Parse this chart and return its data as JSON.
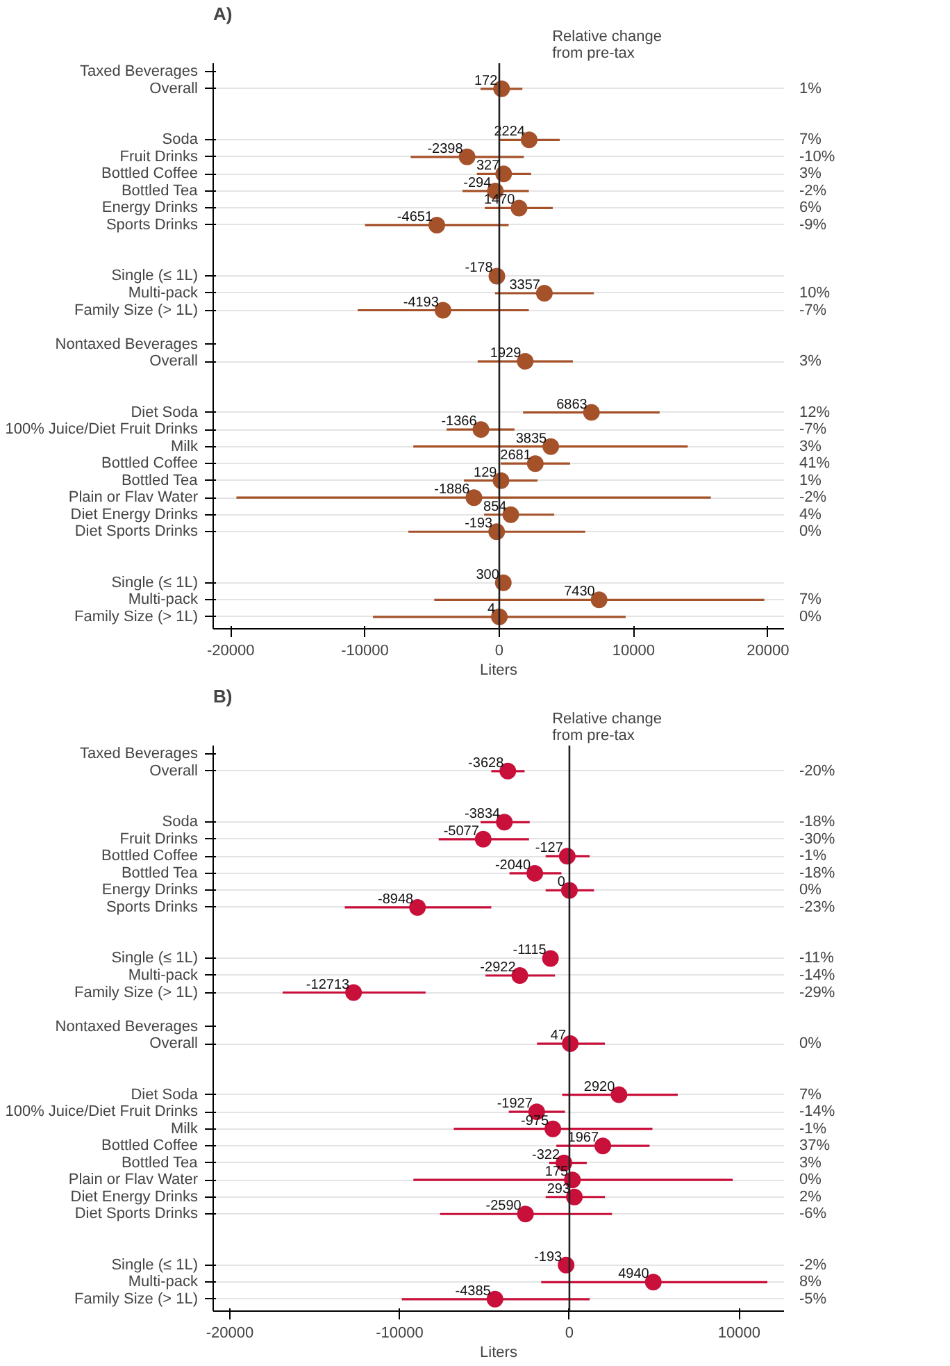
{
  "chart_data": [
    {
      "type": "scatter",
      "orientation": "horizontal",
      "title": "A)",
      "xlabel": "Liters",
      "y2label": "Relative change\nfrom pre-tax",
      "marker": "circle",
      "grid": "y",
      "data_labels": true,
      "color": "#a5522b",
      "xlim": [
        -21300,
        21200
      ],
      "xticks": [
        -20000,
        -10000,
        0,
        10000,
        20000
      ],
      "ref_lines": [
        {
          "axis": "x",
          "value": 0,
          "color": "#222222"
        }
      ],
      "categories": [
        "Taxed Beverages",
        "Overall",
        null,
        null,
        "Soda",
        "Fruit Drinks",
        "Bottled Coffee",
        "Bottled Tea",
        "Energy Drinks",
        "Sports Drinks",
        null,
        null,
        "Single (≤ 1L)",
        "Multi-pack",
        "Family Size (> 1L)",
        null,
        "Nontaxed Beverages",
        "Overall",
        null,
        null,
        "Diet Soda",
        "100% Juice/Diet Fruit Drinks",
        "Milk",
        "Bottled Coffee",
        "Bottled Tea",
        "Plain or Flav Water",
        "Diet Energy Drinks",
        "Diet Sports Drinks",
        null,
        null,
        "Single (≤ 1L)",
        "Multi-pack",
        "Family Size (> 1L)"
      ],
      "y2_categories": [
        null,
        "1%",
        null,
        null,
        "7%",
        "-10%",
        "3%",
        "-2%",
        "6%",
        "-9%",
        null,
        null,
        null,
        "10%",
        "-7%",
        null,
        null,
        "3%",
        null,
        null,
        "12%",
        "-7%",
        "3%",
        "41%",
        "1%",
        "-2%",
        "4%",
        "0%",
        null,
        null,
        null,
        "7%",
        "0%"
      ],
      "values": [
        null,
        172,
        null,
        null,
        2224,
        -2398,
        327,
        -294,
        1470,
        -4651,
        null,
        null,
        -178,
        3357,
        -4193,
        null,
        null,
        1929,
        null,
        null,
        6863,
        -1366,
        3835,
        2681,
        129,
        -1886,
        854,
        -193,
        null,
        null,
        300,
        7430,
        4
      ],
      "errors": [
        null,
        [
          -1400,
          1720
        ],
        null,
        null,
        [
          0,
          4500
        ],
        [
          -6600,
          1830
        ],
        [
          -1670,
          2370
        ],
        [
          -2740,
          2200
        ],
        [
          -1080,
          3980
        ],
        [
          -10000,
          700
        ],
        null,
        null,
        null,
        [
          -320,
          7040
        ],
        [
          -10540,
          2200
        ],
        null,
        null,
        [
          -1610,
          5480
        ],
        null,
        null,
        [
          1770,
          11940
        ],
        [
          -3920,
          1130
        ],
        [
          -6400,
          14030
        ],
        [
          100,
          5270
        ],
        [
          -2630,
          2850
        ],
        [
          -19570,
          15750
        ],
        [
          -1130,
          4090
        ],
        [
          -6770,
          6400
        ],
        null,
        null,
        null,
        [
          -4840,
          19730
        ],
        [
          -9410,
          9410
        ]
      ]
    },
    {
      "type": "scatter",
      "orientation": "horizontal",
      "title": "B)",
      "xlabel": "Liters",
      "y2label": "Relative change\nfrom pre-tax",
      "marker": "circle",
      "grid": "y",
      "data_labels": true,
      "color": "#c8103a",
      "xlim": [
        -20980,
        12640
      ],
      "xticks": [
        -20000,
        -10000,
        0,
        10000
      ],
      "ref_lines": [
        {
          "axis": "x",
          "value": 0,
          "color": "#222222"
        }
      ],
      "categories": [
        "Taxed Beverages",
        "Overall",
        null,
        null,
        "Soda",
        "Fruit Drinks",
        "Bottled Coffee",
        "Bottled Tea",
        "Energy Drinks",
        "Sports Drinks",
        null,
        null,
        "Single (≤ 1L)",
        "Multi-pack",
        "Family Size (> 1L)",
        null,
        "Nontaxed Beverages",
        "Overall",
        null,
        null,
        "Diet Soda",
        "100% Juice/Diet Fruit Drinks",
        "Milk",
        "Bottled Coffee",
        "Bottled Tea",
        "Plain or Flav Water",
        "Diet Energy Drinks",
        "Diet Sports Drinks",
        null,
        null,
        "Single (≤ 1L)",
        "Multi-pack",
        "Family Size (> 1L)"
      ],
      "y2_categories": [
        null,
        "-20%",
        null,
        null,
        "-18%",
        "-30%",
        "-1%",
        "-18%",
        "0%",
        "-23%",
        null,
        null,
        "-11%",
        "-14%",
        "-29%",
        null,
        null,
        "0%",
        null,
        null,
        "7%",
        "-14%",
        "-1%",
        "37%",
        "3%",
        "0%",
        "2%",
        "-6%",
        null,
        null,
        "-2%",
        "8%",
        "-5%"
      ],
      "values": [
        null,
        -3628,
        null,
        null,
        -3834,
        -5077,
        -127,
        -2040,
        0,
        -8948,
        null,
        null,
        -1115,
        -2922,
        -12713,
        null,
        null,
        47,
        null,
        null,
        2920,
        -1927,
        -975,
        1967,
        -322,
        175,
        293,
        -2590,
        null,
        null,
        -193,
        4940,
        -4385
      ],
      "errors": [
        null,
        [
          -4600,
          -2640
        ],
        null,
        null,
        [
          -5230,
          -2340
        ],
        [
          -7700,
          -2380
        ],
        [
          -1400,
          1190
        ],
        [
          -3530,
          -470
        ],
        [
          -1400,
          1450
        ],
        [
          -13230,
          -4600
        ],
        null,
        null,
        null,
        [
          -4940,
          -850
        ],
        [
          -16890,
          -8470
        ],
        null,
        null,
        [
          -1910,
          2090
        ],
        null,
        null,
        [
          -430,
          6380
        ],
        [
          -3570,
          -260
        ],
        [
          -6810,
          4890
        ],
        [
          -770,
          4720
        ],
        [
          -1190,
          1020
        ],
        [
          -9190,
          9620
        ],
        [
          -1400,
          2090
        ],
        [
          -7620,
          2510
        ],
        null,
        null,
        null,
        [
          -1660,
          11660
        ],
        [
          -9870,
          1190
        ]
      ]
    }
  ]
}
